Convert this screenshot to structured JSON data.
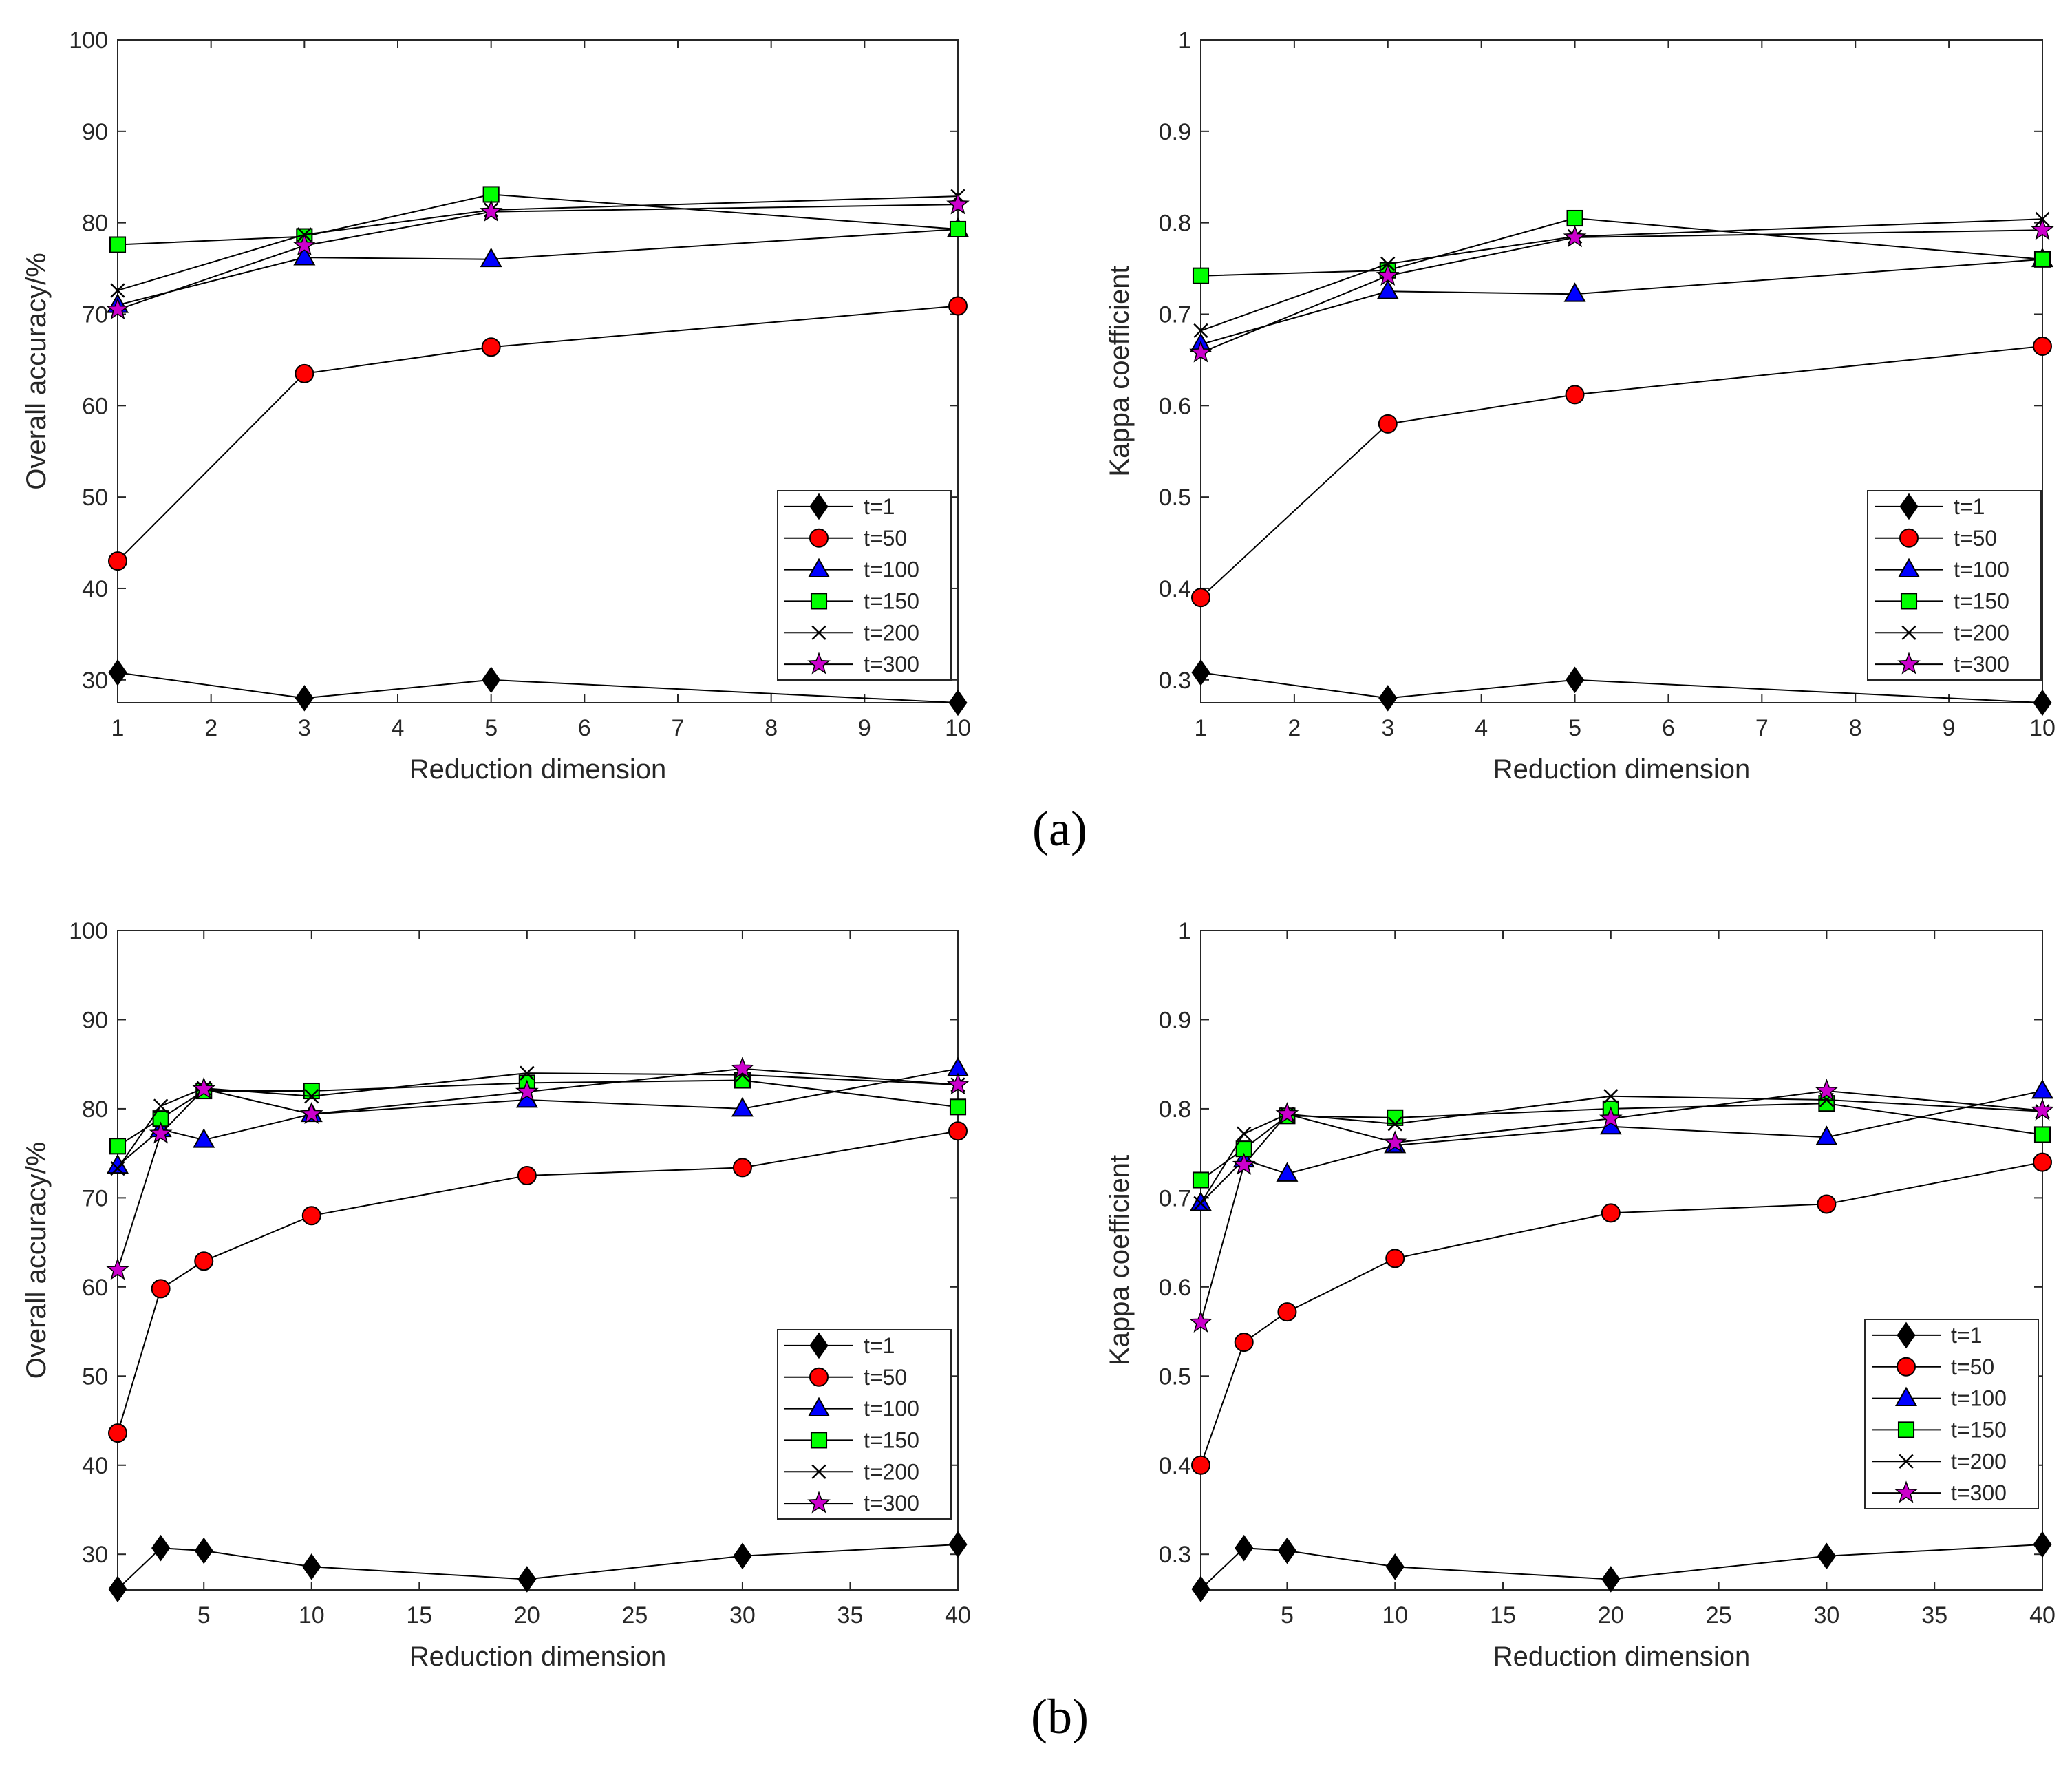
{
  "figure": {
    "panel_labels": [
      "(a)",
      "(b)"
    ]
  },
  "colors": {
    "t1": "#000000",
    "t50": "#ff0000",
    "t100": "#0000ff",
    "t150": "#00ff00",
    "t200": "#000000",
    "t300": "#cc00cc",
    "line": "#000000"
  },
  "chart_data": [
    {
      "id": "a-oa",
      "type": "line",
      "xlabel": "Reduction dimension",
      "ylabel": "Overall accuracy/%",
      "xlim": [
        1,
        10
      ],
      "ylim": [
        27.5,
        100
      ],
      "xticks": [
        1,
        2,
        3,
        4,
        5,
        6,
        7,
        8,
        9,
        10
      ],
      "yticks": [
        30,
        40,
        50,
        60,
        70,
        80,
        90,
        100
      ],
      "x": [
        1,
        3,
        5,
        10
      ],
      "legend_position": "bottom-right",
      "series": [
        {
          "name": "t=1",
          "marker": "diamond",
          "color_key": "t1",
          "values": [
            30.8,
            28.0,
            30.0,
            27.5
          ]
        },
        {
          "name": "t=50",
          "marker": "circle",
          "color_key": "t50",
          "values": [
            43.0,
            63.5,
            66.4,
            70.9
          ]
        },
        {
          "name": "t=100",
          "marker": "triangle",
          "color_key": "t100",
          "values": [
            71.0,
            76.2,
            76.0,
            79.3
          ]
        },
        {
          "name": "t=150",
          "marker": "square",
          "color_key": "t150",
          "values": [
            77.6,
            78.5,
            83.1,
            79.3
          ]
        },
        {
          "name": "t=200",
          "marker": "x",
          "color_key": "t200",
          "values": [
            72.6,
            78.7,
            81.4,
            82.9
          ]
        },
        {
          "name": "t=300",
          "marker": "star",
          "color_key": "t300",
          "values": [
            70.5,
            77.5,
            81.2,
            82.0
          ]
        }
      ]
    },
    {
      "id": "a-kappa",
      "type": "line",
      "xlabel": "Reduction dimension",
      "ylabel": "Kappa coefficient",
      "xlim": [
        1,
        10
      ],
      "ylim": [
        0.275,
        1
      ],
      "xticks": [
        1,
        2,
        3,
        4,
        5,
        6,
        7,
        8,
        9,
        10
      ],
      "yticks": [
        0.3,
        0.4,
        0.5,
        0.6,
        0.7,
        0.8,
        0.9,
        1
      ],
      "x": [
        1,
        3,
        5,
        10
      ],
      "legend_position": "bottom-right",
      "series": [
        {
          "name": "t=1",
          "marker": "diamond",
          "color_key": "t1",
          "values": [
            0.308,
            0.28,
            0.3,
            0.275
          ]
        },
        {
          "name": "t=50",
          "marker": "circle",
          "color_key": "t50",
          "values": [
            0.39,
            0.58,
            0.612,
            0.665
          ]
        },
        {
          "name": "t=100",
          "marker": "triangle",
          "color_key": "t100",
          "values": [
            0.667,
            0.725,
            0.722,
            0.76
          ]
        },
        {
          "name": "t=150",
          "marker": "square",
          "color_key": "t150",
          "values": [
            0.742,
            0.748,
            0.805,
            0.76
          ]
        },
        {
          "name": "t=200",
          "marker": "x",
          "color_key": "t200",
          "values": [
            0.682,
            0.755,
            0.785,
            0.804
          ]
        },
        {
          "name": "t=300",
          "marker": "star",
          "color_key": "t300",
          "values": [
            0.658,
            0.742,
            0.784,
            0.792
          ]
        }
      ]
    },
    {
      "id": "b-oa",
      "type": "line",
      "xlabel": "Reduction dimension",
      "ylabel": "Overall accuracy/%",
      "xlim": [
        1,
        40
      ],
      "ylim": [
        26,
        100
      ],
      "xticks": [
        5,
        10,
        15,
        20,
        25,
        30,
        35,
        40
      ],
      "yticks": [
        30,
        40,
        50,
        60,
        70,
        80,
        90,
        100
      ],
      "x": [
        1,
        3,
        5,
        10,
        20,
        30,
        40
      ],
      "legend_position": "bottom-right",
      "series": [
        {
          "name": "t=1",
          "marker": "diamond",
          "color_key": "t1",
          "values": [
            26.1,
            30.7,
            30.4,
            28.6,
            27.2,
            29.8,
            31.1
          ]
        },
        {
          "name": "t=50",
          "marker": "circle",
          "color_key": "t50",
          "values": [
            43.6,
            59.8,
            62.9,
            68.0,
            72.5,
            73.4,
            77.5
          ]
        },
        {
          "name": "t=100",
          "marker": "triangle",
          "color_key": "t100",
          "values": [
            73.6,
            77.7,
            76.5,
            79.4,
            81.0,
            80.0,
            84.5
          ]
        },
        {
          "name": "t=150",
          "marker": "square",
          "color_key": "t150",
          "values": [
            75.8,
            78.9,
            82.0,
            82.0,
            82.9,
            83.2,
            80.2
          ]
        },
        {
          "name": "t=200",
          "marker": "x",
          "color_key": "t200",
          "values": [
            73.3,
            80.3,
            82.3,
            81.4,
            84.0,
            83.8,
            82.7
          ]
        },
        {
          "name": "t=300",
          "marker": "star",
          "color_key": "t300",
          "values": [
            61.9,
            77.2,
            82.2,
            79.4,
            81.9,
            84.5,
            82.7
          ]
        }
      ]
    },
    {
      "id": "b-kappa",
      "type": "line",
      "xlabel": "Reduction dimension",
      "ylabel": "Kappa coefficient",
      "xlim": [
        1,
        40
      ],
      "ylim": [
        0.26,
        1
      ],
      "xticks": [
        5,
        10,
        15,
        20,
        25,
        30,
        35,
        40
      ],
      "yticks": [
        0.3,
        0.4,
        0.5,
        0.6,
        0.7,
        0.8,
        0.9,
        1
      ],
      "x": [
        1,
        3,
        5,
        10,
        20,
        30,
        40
      ],
      "legend_position": "bottom-right",
      "series": [
        {
          "name": "t=1",
          "marker": "diamond",
          "color_key": "t1",
          "values": [
            0.261,
            0.307,
            0.304,
            0.286,
            0.272,
            0.298,
            0.311
          ]
        },
        {
          "name": "t=50",
          "marker": "circle",
          "color_key": "t50",
          "values": [
            0.4,
            0.538,
            0.572,
            0.632,
            0.683,
            0.693,
            0.74
          ]
        },
        {
          "name": "t=100",
          "marker": "triangle",
          "color_key": "t100",
          "values": [
            0.694,
            0.743,
            0.727,
            0.759,
            0.78,
            0.768,
            0.82
          ]
        },
        {
          "name": "t=150",
          "marker": "square",
          "color_key": "t150",
          "values": [
            0.72,
            0.755,
            0.792,
            0.79,
            0.8,
            0.806,
            0.771
          ]
        },
        {
          "name": "t=200",
          "marker": "x",
          "color_key": "t200",
          "values": [
            0.694,
            0.772,
            0.794,
            0.783,
            0.814,
            0.81,
            0.797
          ]
        },
        {
          "name": "t=300",
          "marker": "star",
          "color_key": "t300",
          "values": [
            0.56,
            0.737,
            0.794,
            0.762,
            0.789,
            0.82,
            0.798
          ]
        }
      ]
    }
  ]
}
